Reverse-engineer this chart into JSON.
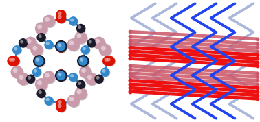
{
  "background_color": "#ffffff",
  "figsize": [
    3.78,
    1.78
  ],
  "dpi": 100,
  "red_color": "#ee1111",
  "red_faded": "#cc5566",
  "blue_color": "#2244ee",
  "blue_faded": "#8899cc",
  "atom_colors": {
    "pink": "#c89aaa",
    "red": "#dd1100",
    "blue": "#3388cc",
    "dark": "#1a1a2a"
  }
}
